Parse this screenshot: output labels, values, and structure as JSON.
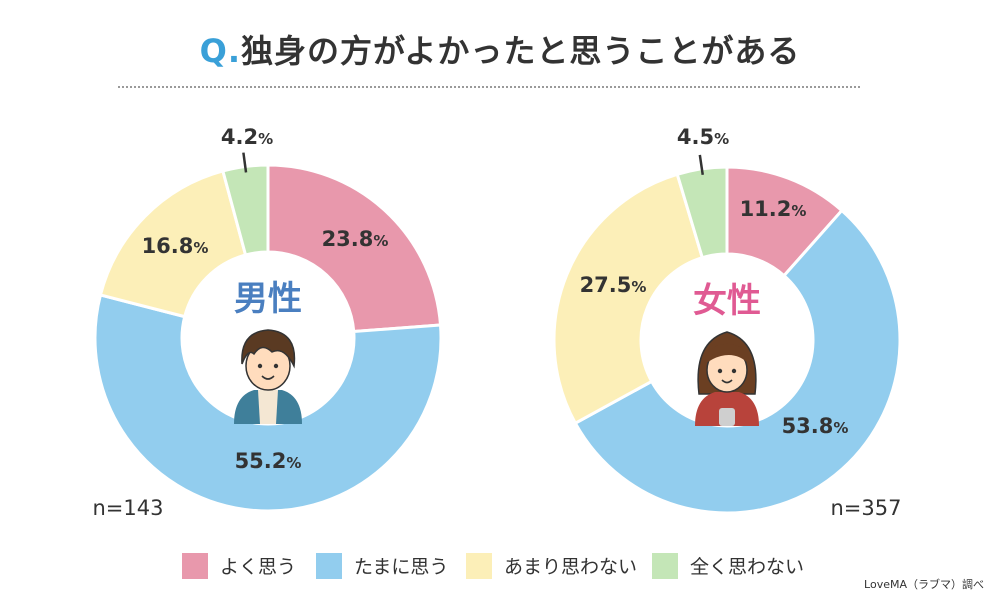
{
  "title": {
    "prefix": "Q.",
    "text": "独身の方がよかったと思うことがある"
  },
  "chart_data": [
    {
      "type": "pie",
      "title": "男性",
      "n_label": "n=143",
      "categories": [
        "よく思う",
        "たまに思う",
        "あまり思わない",
        "全く思わない"
      ],
      "values": [
        23.8,
        55.2,
        16.8,
        4.2
      ],
      "value_labels": [
        "23.8",
        "55.2",
        "16.8",
        "4.2"
      ],
      "unit": "%",
      "donut": true,
      "title_color": "#4a7fc0"
    },
    {
      "type": "pie",
      "title": "女性",
      "n_label": "n=357",
      "categories": [
        "よく思う",
        "たまに思う",
        "あまり思わない",
        "全く思わない"
      ],
      "values": [
        11.2,
        53.8,
        27.5,
        4.5
      ],
      "value_labels": [
        "11.2",
        "53.8",
        "27.5",
        "4.5"
      ],
      "unit": "%",
      "donut": true,
      "title_color": "#e05a93"
    }
  ],
  "colors": [
    "#e898ac",
    "#92cdee",
    "#fcefb8",
    "#c4e6b7"
  ],
  "legend": [
    {
      "label": "よく思う",
      "color": "#e898ac"
    },
    {
      "label": "たまに思う",
      "color": "#92cdee"
    },
    {
      "label": "あまり思わない",
      "color": "#fcefb8"
    },
    {
      "label": "全く思わない",
      "color": "#c4e6b7"
    }
  ],
  "source": "LoveMA（ラブマ）調べ"
}
